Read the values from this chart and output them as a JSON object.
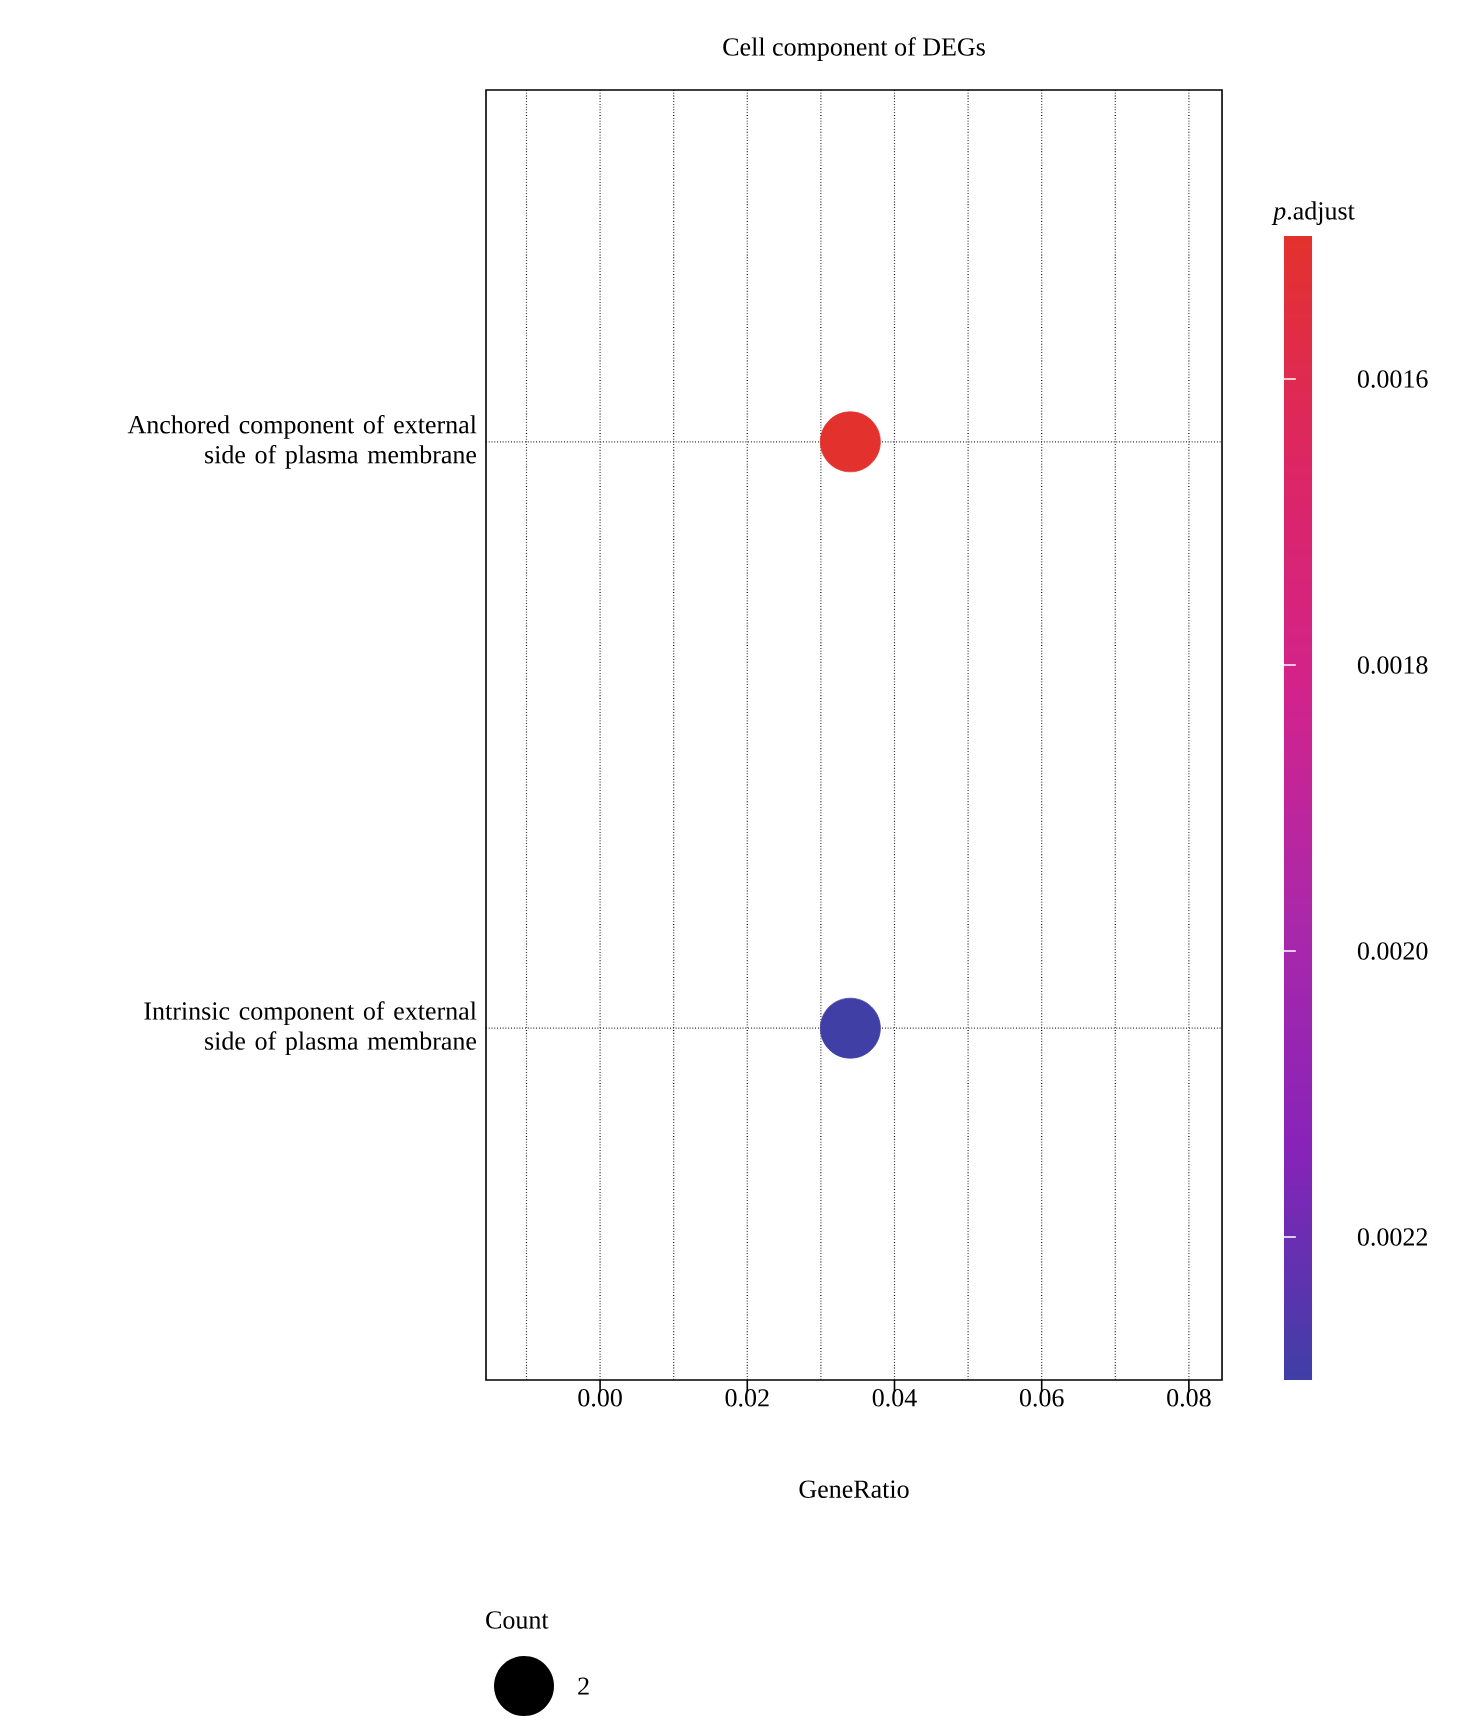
{
  "chart_data": {
    "type": "bubble",
    "orientation": "horizontal",
    "title": "Cell component of DEGs",
    "xlabel": "GeneRatio",
    "clabel": "*p*.adjust",
    "legend_title": "Count",
    "categories": [
      "Anchored component of external side of plasma membrane",
      "Intrinsic component of external side of plasma membrane"
    ],
    "values": [
      0.034,
      0.034
    ],
    "sizes": [
      2,
      2
    ],
    "size_legend": [
      2
    ],
    "cvalues": [
      0.0015,
      0.0023
    ],
    "clim": [
      0.0015,
      0.0023
    ],
    "cticks": [
      {
        "value": 0.0016,
        "label": "0.0016"
      },
      {
        "value": 0.0018,
        "label": "0.0018"
      },
      {
        "value": 0.002,
        "label": "0.0020"
      },
      {
        "value": 0.0022,
        "label": "0.0022"
      }
    ],
    "xlim": [
      -0.0155,
      0.0845
    ],
    "xticks": [
      {
        "value": -0.01,
        "label": null
      },
      {
        "value": 0,
        "label": "0.00"
      },
      {
        "value": 0.01,
        "label": null
      },
      {
        "value": 0.02,
        "label": "0.02"
      },
      {
        "value": 0.03,
        "label": null
      },
      {
        "value": 0.04,
        "label": "0.04"
      },
      {
        "value": 0.05,
        "label": null
      },
      {
        "value": 0.06,
        "label": "0.06"
      },
      {
        "value": 0.07,
        "label": null
      },
      {
        "value": 0.08,
        "label": "0.08"
      }
    ],
    "grid": true
  }
}
